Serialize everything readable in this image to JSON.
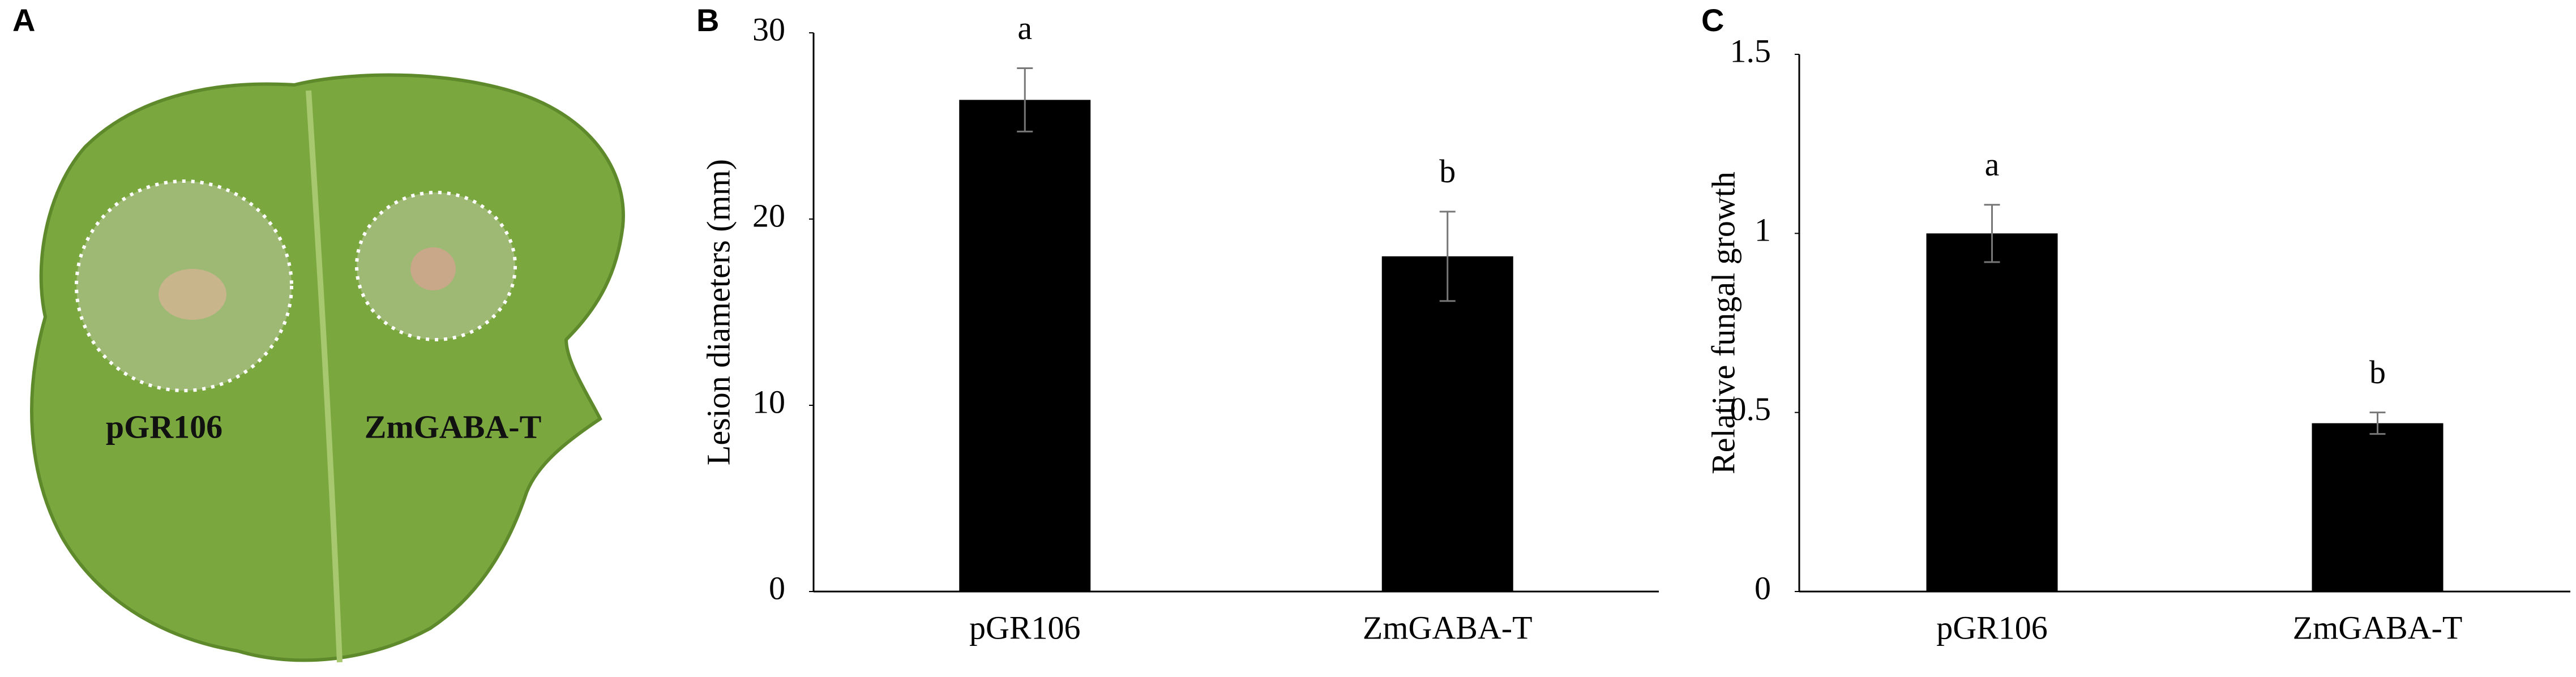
{
  "photo": {
    "panel_label": "A",
    "labels": [
      "pGR106",
      "ZmGABA-T"
    ]
  },
  "chart_data": [
    {
      "type": "bar",
      "panel_label": "B",
      "y_label": "Lesion diameters (mm)",
      "categories": [
        "pGR106",
        "ZmGABA-T"
      ],
      "values": [
        26.4,
        18
      ],
      "errors": [
        1.7,
        2.4
      ],
      "annotations": [
        "a",
        "b"
      ],
      "color": "#000000",
      "ylim": [
        0,
        30
      ],
      "yticks": [
        0,
        10,
        20,
        30
      ]
    },
    {
      "type": "bar",
      "panel_label": "C",
      "y_label": "Relative fungal growth",
      "categories": [
        "pGR106",
        "ZmGABA-T"
      ],
      "values": [
        1,
        0.47
      ],
      "errors": [
        0.08,
        0.03
      ],
      "annotations": [
        "a",
        "b"
      ],
      "color": "#000000",
      "ylim": [
        0,
        1.5
      ],
      "yticks": [
        0,
        0.5,
        1,
        1.5
      ]
    }
  ]
}
